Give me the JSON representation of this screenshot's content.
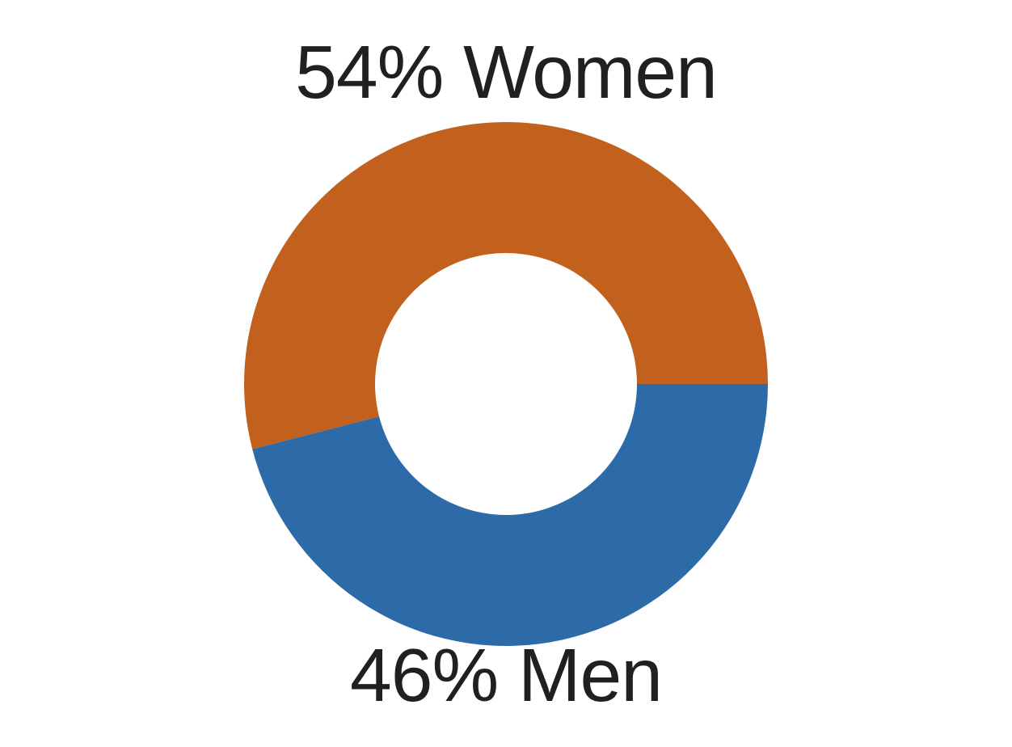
{
  "page": {
    "background_color": "#ffffff",
    "text_color": "#221f1f"
  },
  "chart_data": {
    "type": "pie",
    "variant": "donut",
    "title": "",
    "categories": [
      "Women",
      "Men"
    ],
    "values": [
      54,
      46
    ],
    "unit": "%",
    "slices": [
      {
        "name": "Women",
        "value": 54,
        "color": "#C2611D",
        "label": "54% Women",
        "label_position": "top"
      },
      {
        "name": "Men",
        "value": 46,
        "color": "#2C6BA8",
        "label": "46% Men",
        "label_position": "bottom"
      }
    ],
    "layout_hints": {
      "start_angle_deg": 0,
      "direction": "counterclockwise",
      "inner_radius_ratio": 0.5,
      "legend": "none",
      "grid": "off"
    }
  }
}
